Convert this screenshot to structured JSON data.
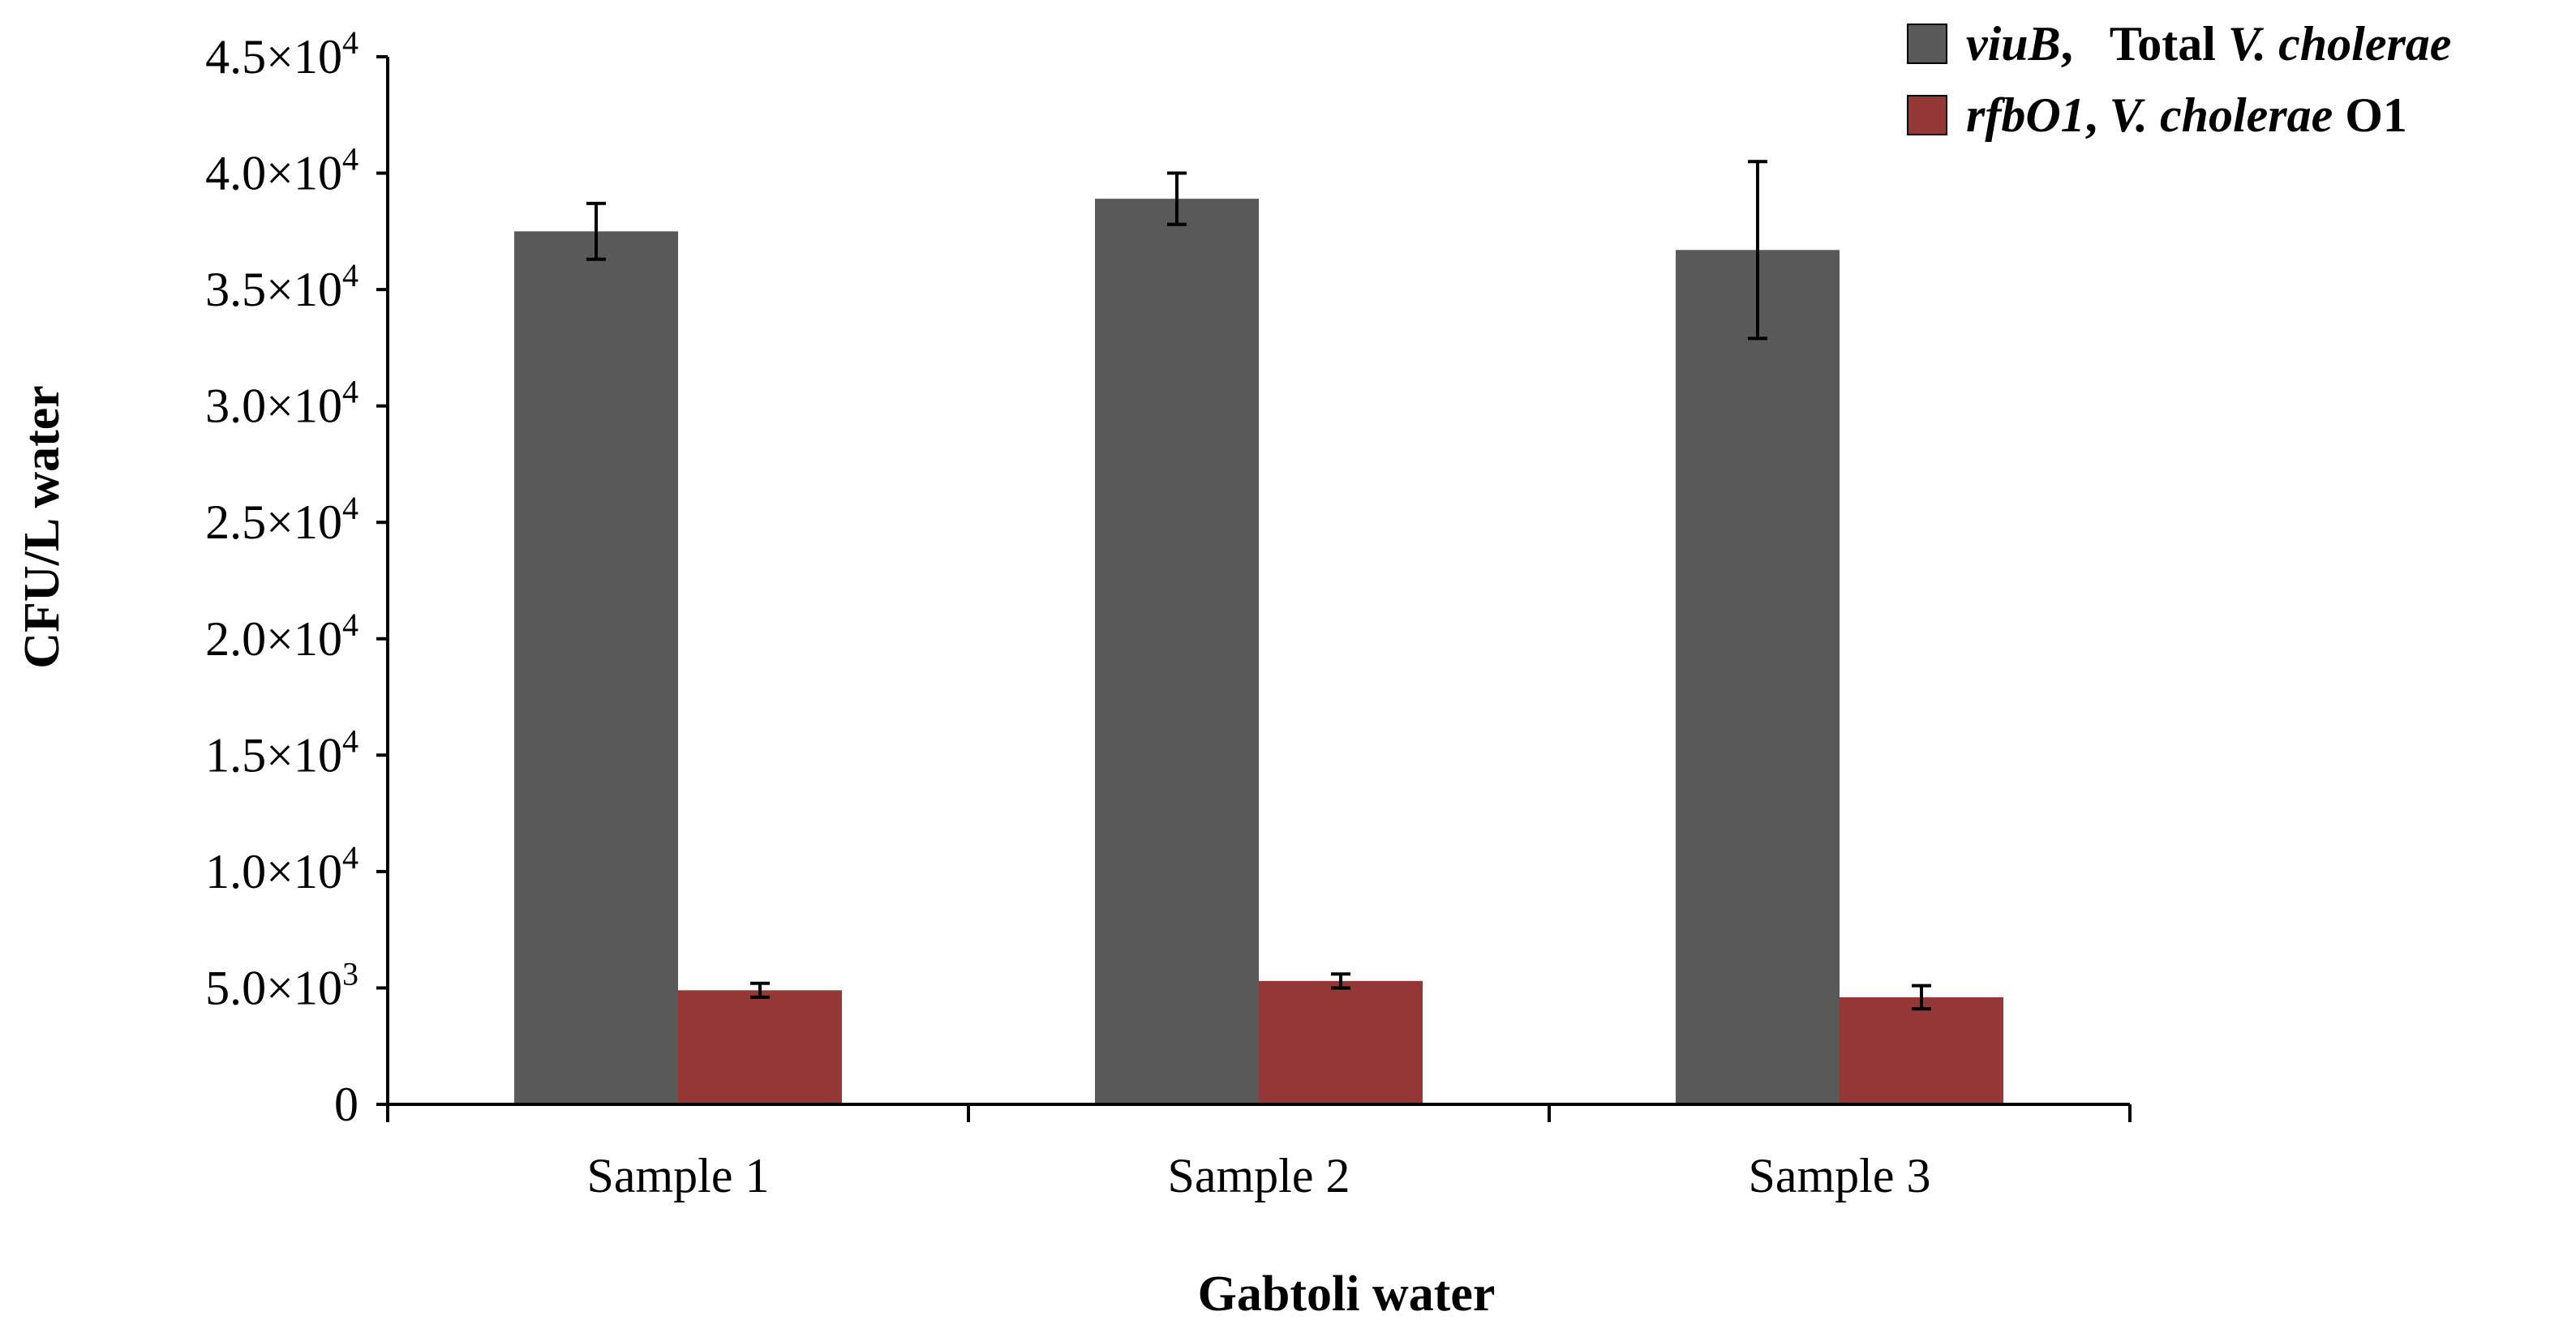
{
  "chart_data": {
    "type": "bar",
    "title": "",
    "xlabel": "Gabtoli water",
    "ylabel": "CFU/L water",
    "categories": [
      "Sample 1",
      "Sample 2",
      "Sample 3"
    ],
    "ylim": [
      0,
      45000
    ],
    "yticks": [
      {
        "value": 0,
        "mantissa": "0",
        "exp": ""
      },
      {
        "value": 5000,
        "mantissa": "5.0×10",
        "exp": "3"
      },
      {
        "value": 10000,
        "mantissa": "1.0×10",
        "exp": "4"
      },
      {
        "value": 15000,
        "mantissa": "1.5×10",
        "exp": "4"
      },
      {
        "value": 20000,
        "mantissa": "2.0×10",
        "exp": "4"
      },
      {
        "value": 25000,
        "mantissa": "2.5×10",
        "exp": "4"
      },
      {
        "value": 30000,
        "mantissa": "3.0×10",
        "exp": "4"
      },
      {
        "value": 35000,
        "mantissa": "3.5×10",
        "exp": "4"
      },
      {
        "value": 40000,
        "mantissa": "4.0×10",
        "exp": "4"
      },
      {
        "value": 45000,
        "mantissa": "4.5×10",
        "exp": "4"
      }
    ],
    "grid": false,
    "legend_position": "top-right",
    "series": [
      {
        "name": "viuB, Total V. cholerae",
        "legend_parts": [
          {
            "text": "viuB",
            "italic": true
          },
          {
            "text": ",   Total ",
            "italic": false
          },
          {
            "text": "V. cholerae",
            "italic": true
          }
        ],
        "color": "#595959",
        "values": [
          37500,
          38900,
          36700
        ],
        "errors": [
          1200,
          1100,
          3800
        ]
      },
      {
        "name": "rfbO1, V. cholerae O1",
        "legend_parts": [
          {
            "text": "rfbO1",
            "italic": true
          },
          {
            "text": ", ",
            "italic": false
          },
          {
            "text": "V. cholerae",
            "italic": true
          },
          {
            "text": " O1",
            "italic": false
          }
        ],
        "color": "#953735",
        "values": [
          4900,
          5300,
          4600
        ],
        "errors": [
          300,
          300,
          500
        ]
      }
    ]
  }
}
